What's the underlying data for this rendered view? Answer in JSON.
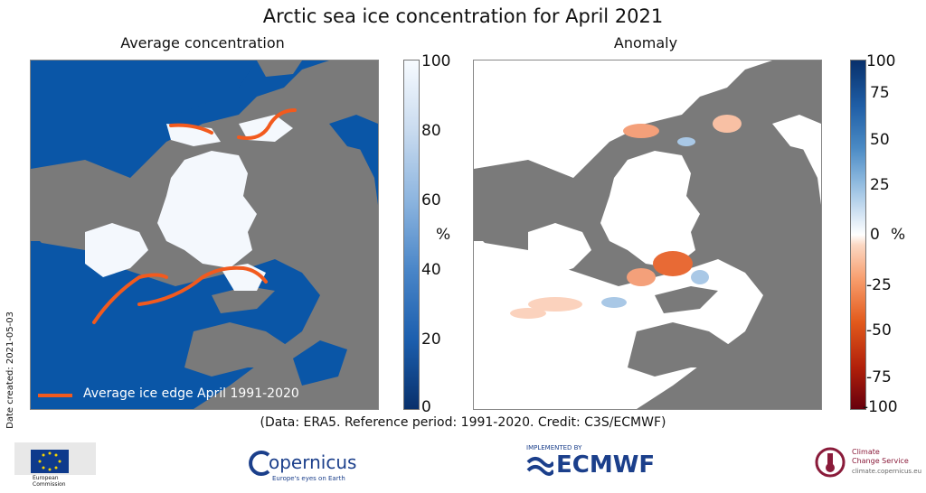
{
  "title": "Arctic sea ice concentration for April 2021",
  "panels": {
    "left": {
      "title": "Average concentration",
      "colorbar_ticks": [
        "100",
        "80",
        "60",
        "40",
        "20",
        "0"
      ],
      "unit": "%",
      "legend": "Average ice edge April 1991-2020",
      "colors": {
        "ocean": "#0a56a7",
        "land": "#7a7a7a",
        "ice": "#f4f8fd",
        "ice_edge": "#f25a1e"
      }
    },
    "right": {
      "title": "Anomaly",
      "colorbar_ticks": [
        "100",
        "75",
        "50",
        "25",
        "0",
        "-25",
        "-50",
        "-75",
        "-100"
      ],
      "unit": "%",
      "colors": {
        "ocean": "#ffffff",
        "land": "#7a7a7a",
        "negative": "#e25a1c",
        "positive": "#8fbadf"
      }
    }
  },
  "credit": "(Data: ERA5.  Reference period: 1991-2020.  Credit: C3S/ECMWF)",
  "date_created": "Date created: 2021-05-03",
  "logos": {
    "eu": {
      "text_1": "European",
      "text_2": "Commission"
    },
    "copernicus": {
      "name": "opernicus",
      "tagline": "Europe's eyes on Earth"
    },
    "ecmwf": {
      "top": "IMPLEMENTED BY",
      "name": "ECMWF"
    },
    "c3s": {
      "line1": "Climate",
      "line2": "Change Service",
      "url": "climate.copernicus.eu"
    }
  }
}
